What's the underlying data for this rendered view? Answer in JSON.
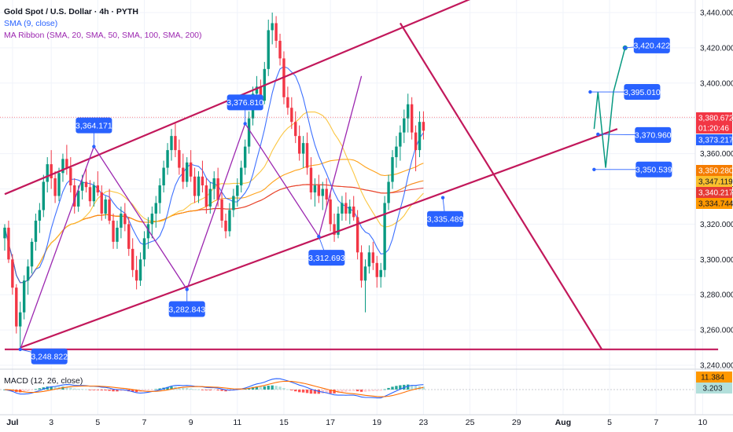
{
  "legend": {
    "title": "Gold Spot / U.S. Dollar · 4h · PYTH",
    "sma": "SMA (9, close)",
    "ribbon": "MA Ribbon (SMA, 20, SMA, 50, SMA, 100, SMA, 200)",
    "macd": "MACD (12, 26, close)"
  },
  "chart_data": {
    "type": "candlestick",
    "symbol": "Gold Spot / U.S. Dollar",
    "interval": "4h",
    "ylim": [
      3240,
      3440
    ],
    "y_ticks": [
      "3,440.000",
      "3,420.000",
      "3,400.000",
      "3,380.000",
      "3,360.000",
      "3,340.000",
      "3,320.000",
      "3,300.000",
      "3,280.000",
      "3,260.000",
      "3,240.000"
    ],
    "y_tick_values": [
      3440,
      3420,
      3400,
      3380,
      3360,
      3340,
      3320,
      3300,
      3280,
      3260,
      3240
    ],
    "x_ticks": [
      "Jul",
      "3",
      "5",
      "7",
      "9",
      "11",
      "15",
      "17",
      "19",
      "23",
      "25",
      "29",
      "Aug",
      "5",
      "7",
      "10"
    ],
    "x_tick_pos": [
      2,
      12,
      24,
      36,
      48,
      60,
      72,
      84,
      96,
      108,
      120,
      132,
      144,
      156,
      168,
      180
    ],
    "candles": [
      {
        "o": 3312,
        "h": 3320,
        "l": 3305,
        "c": 3318
      },
      {
        "o": 3318,
        "h": 3322,
        "l": 3298,
        "c": 3300
      },
      {
        "o": 3300,
        "h": 3303,
        "l": 3280,
        "c": 3284
      },
      {
        "o": 3284,
        "h": 3286,
        "l": 3258,
        "c": 3262
      },
      {
        "o": 3262,
        "h": 3276,
        "l": 3250,
        "c": 3270
      },
      {
        "o": 3270,
        "h": 3291,
        "l": 3266,
        "c": 3288
      },
      {
        "o": 3288,
        "h": 3300,
        "l": 3280,
        "c": 3296
      },
      {
        "o": 3296,
        "h": 3312,
        "l": 3292,
        "c": 3310
      },
      {
        "o": 3310,
        "h": 3326,
        "l": 3305,
        "c": 3322
      },
      {
        "o": 3322,
        "h": 3332,
        "l": 3315,
        "c": 3328
      },
      {
        "o": 3328,
        "h": 3348,
        "l": 3324,
        "c": 3344
      },
      {
        "o": 3344,
        "h": 3358,
        "l": 3338,
        "c": 3354
      },
      {
        "o": 3354,
        "h": 3362,
        "l": 3340,
        "c": 3346
      },
      {
        "o": 3346,
        "h": 3350,
        "l": 3332,
        "c": 3336
      },
      {
        "o": 3336,
        "h": 3352,
        "l": 3333,
        "c": 3349
      },
      {
        "o": 3349,
        "h": 3360,
        "l": 3344,
        "c": 3357
      },
      {
        "o": 3357,
        "h": 3365,
        "l": 3348,
        "c": 3352
      },
      {
        "o": 3352,
        "h": 3358,
        "l": 3338,
        "c": 3342
      },
      {
        "o": 3342,
        "h": 3346,
        "l": 3326,
        "c": 3330
      },
      {
        "o": 3330,
        "h": 3342,
        "l": 3327,
        "c": 3339
      },
      {
        "o": 3339,
        "h": 3348,
        "l": 3334,
        "c": 3344
      },
      {
        "o": 3344,
        "h": 3352,
        "l": 3338,
        "c": 3341
      },
      {
        "o": 3341,
        "h": 3345,
        "l": 3330,
        "c": 3333
      },
      {
        "o": 3333,
        "h": 3344,
        "l": 3330,
        "c": 3342
      },
      {
        "o": 3342,
        "h": 3350,
        "l": 3336,
        "c": 3338
      },
      {
        "o": 3338,
        "h": 3342,
        "l": 3322,
        "c": 3326
      },
      {
        "o": 3326,
        "h": 3336,
        "l": 3323,
        "c": 3334
      },
      {
        "o": 3334,
        "h": 3340,
        "l": 3320,
        "c": 3322
      },
      {
        "o": 3322,
        "h": 3326,
        "l": 3306,
        "c": 3310
      },
      {
        "o": 3310,
        "h": 3322,
        "l": 3306,
        "c": 3318
      },
      {
        "o": 3318,
        "h": 3330,
        "l": 3312,
        "c": 3326
      },
      {
        "o": 3326,
        "h": 3332,
        "l": 3316,
        "c": 3320
      },
      {
        "o": 3320,
        "h": 3324,
        "l": 3302,
        "c": 3306
      },
      {
        "o": 3306,
        "h": 3312,
        "l": 3290,
        "c": 3294
      },
      {
        "o": 3294,
        "h": 3302,
        "l": 3283,
        "c": 3288
      },
      {
        "o": 3288,
        "h": 3304,
        "l": 3285,
        "c": 3300
      },
      {
        "o": 3300,
        "h": 3316,
        "l": 3296,
        "c": 3312
      },
      {
        "o": 3312,
        "h": 3324,
        "l": 3306,
        "c": 3320
      },
      {
        "o": 3320,
        "h": 3330,
        "l": 3312,
        "c": 3326
      },
      {
        "o": 3326,
        "h": 3336,
        "l": 3318,
        "c": 3332
      },
      {
        "o": 3332,
        "h": 3346,
        "l": 3326,
        "c": 3342
      },
      {
        "o": 3342,
        "h": 3356,
        "l": 3338,
        "c": 3352
      },
      {
        "o": 3352,
        "h": 3366,
        "l": 3348,
        "c": 3362
      },
      {
        "o": 3362,
        "h": 3374,
        "l": 3356,
        "c": 3370
      },
      {
        "o": 3370,
        "h": 3377,
        "l": 3358,
        "c": 3362
      },
      {
        "o": 3362,
        "h": 3368,
        "l": 3348,
        "c": 3352
      },
      {
        "o": 3352,
        "h": 3360,
        "l": 3340,
        "c": 3344
      },
      {
        "o": 3344,
        "h": 3358,
        "l": 3341,
        "c": 3355
      },
      {
        "o": 3355,
        "h": 3362,
        "l": 3344,
        "c": 3347
      },
      {
        "o": 3347,
        "h": 3352,
        "l": 3332,
        "c": 3336
      },
      {
        "o": 3336,
        "h": 3350,
        "l": 3332,
        "c": 3347
      },
      {
        "o": 3347,
        "h": 3356,
        "l": 3338,
        "c": 3342
      },
      {
        "o": 3342,
        "h": 3346,
        "l": 3326,
        "c": 3330
      },
      {
        "o": 3330,
        "h": 3344,
        "l": 3326,
        "c": 3340
      },
      {
        "o": 3340,
        "h": 3350,
        "l": 3334,
        "c": 3346
      },
      {
        "o": 3346,
        "h": 3352,
        "l": 3330,
        "c": 3334
      },
      {
        "o": 3334,
        "h": 3338,
        "l": 3318,
        "c": 3322
      },
      {
        "o": 3322,
        "h": 3326,
        "l": 3312,
        "c": 3316
      },
      {
        "o": 3316,
        "h": 3332,
        "l": 3313,
        "c": 3328
      },
      {
        "o": 3328,
        "h": 3340,
        "l": 3324,
        "c": 3336
      },
      {
        "o": 3336,
        "h": 3346,
        "l": 3330,
        "c": 3342
      },
      {
        "o": 3342,
        "h": 3356,
        "l": 3338,
        "c": 3352
      },
      {
        "o": 3352,
        "h": 3368,
        "l": 3348,
        "c": 3364
      },
      {
        "o": 3364,
        "h": 3384,
        "l": 3360,
        "c": 3380
      },
      {
        "o": 3380,
        "h": 3398,
        "l": 3376,
        "c": 3394
      },
      {
        "o": 3394,
        "h": 3404,
        "l": 3386,
        "c": 3398
      },
      {
        "o": 3398,
        "h": 3402,
        "l": 3386,
        "c": 3390
      },
      {
        "o": 3390,
        "h": 3412,
        "l": 3388,
        "c": 3408
      },
      {
        "o": 3408,
        "h": 3436,
        "l": 3404,
        "c": 3430
      },
      {
        "o": 3430,
        "h": 3440,
        "l": 3422,
        "c": 3434
      },
      {
        "o": 3434,
        "h": 3438,
        "l": 3420,
        "c": 3424
      },
      {
        "o": 3424,
        "h": 3428,
        "l": 3410,
        "c": 3414
      },
      {
        "o": 3414,
        "h": 3418,
        "l": 3388,
        "c": 3392
      },
      {
        "o": 3392,
        "h": 3398,
        "l": 3382,
        "c": 3386
      },
      {
        "o": 3386,
        "h": 3392,
        "l": 3374,
        "c": 3378
      },
      {
        "o": 3378,
        "h": 3384,
        "l": 3366,
        "c": 3370
      },
      {
        "o": 3370,
        "h": 3376,
        "l": 3356,
        "c": 3360
      },
      {
        "o": 3360,
        "h": 3370,
        "l": 3352,
        "c": 3366
      },
      {
        "o": 3366,
        "h": 3372,
        "l": 3348,
        "c": 3352
      },
      {
        "o": 3352,
        "h": 3358,
        "l": 3334,
        "c": 3338
      },
      {
        "o": 3338,
        "h": 3346,
        "l": 3330,
        "c": 3342
      },
      {
        "o": 3342,
        "h": 3348,
        "l": 3332,
        "c": 3336
      },
      {
        "o": 3336,
        "h": 3344,
        "l": 3328,
        "c": 3340
      },
      {
        "o": 3340,
        "h": 3346,
        "l": 3330,
        "c": 3334
      },
      {
        "o": 3334,
        "h": 3338,
        "l": 3316,
        "c": 3320
      },
      {
        "o": 3320,
        "h": 3326,
        "l": 3310,
        "c": 3314
      },
      {
        "o": 3314,
        "h": 3330,
        "l": 3312,
        "c": 3326
      },
      {
        "o": 3326,
        "h": 3336,
        "l": 3322,
        "c": 3332
      },
      {
        "o": 3332,
        "h": 3338,
        "l": 3322,
        "c": 3326
      },
      {
        "o": 3326,
        "h": 3334,
        "l": 3320,
        "c": 3330
      },
      {
        "o": 3330,
        "h": 3336,
        "l": 3322,
        "c": 3324
      },
      {
        "o": 3324,
        "h": 3328,
        "l": 3300,
        "c": 3304
      },
      {
        "o": 3304,
        "h": 3308,
        "l": 3284,
        "c": 3288
      },
      {
        "o": 3288,
        "h": 3300,
        "l": 3270,
        "c": 3296
      },
      {
        "o": 3296,
        "h": 3308,
        "l": 3292,
        "c": 3304
      },
      {
        "o": 3304,
        "h": 3310,
        "l": 3294,
        "c": 3298
      },
      {
        "o": 3298,
        "h": 3302,
        "l": 3284,
        "c": 3290
      },
      {
        "o": 3290,
        "h": 3298,
        "l": 3284,
        "c": 3294
      },
      {
        "o": 3294,
        "h": 3336,
        "l": 3290,
        "c": 3332
      },
      {
        "o": 3332,
        "h": 3348,
        "l": 3328,
        "c": 3344
      },
      {
        "o": 3344,
        "h": 3362,
        "l": 3340,
        "c": 3358
      },
      {
        "o": 3358,
        "h": 3370,
        "l": 3352,
        "c": 3364
      },
      {
        "o": 3364,
        "h": 3376,
        "l": 3356,
        "c": 3372
      },
      {
        "o": 3372,
        "h": 3385,
        "l": 3366,
        "c": 3380
      },
      {
        "o": 3380,
        "h": 3394,
        "l": 3372,
        "c": 3388
      },
      {
        "o": 3388,
        "h": 3392,
        "l": 3368,
        "c": 3372
      },
      {
        "o": 3372,
        "h": 3376,
        "l": 3350,
        "c": 3362
      },
      {
        "o": 3362,
        "h": 3384,
        "l": 3358,
        "c": 3378
      },
      {
        "o": 3378,
        "h": 3384,
        "l": 3368,
        "c": 3373
      }
    ],
    "patterns": [
      {
        "name": "ascending-channel-upper",
        "color": "#c2185b",
        "points": [
          [
            0,
            3337
          ],
          [
            140,
            3466
          ]
        ]
      },
      {
        "name": "ascending-channel-lower",
        "color": "#c2185b",
        "points": [
          [
            4,
            3250
          ],
          [
            158,
            3374
          ]
        ]
      },
      {
        "name": "descending-trendline",
        "color": "#c2185b",
        "points": [
          [
            102,
            3434
          ],
          [
            154,
            3249
          ]
        ]
      },
      {
        "name": "horizontal-support",
        "color": "#c2185b",
        "points": [
          [
            0,
            3249
          ],
          [
            184,
            3249
          ]
        ]
      },
      {
        "name": "zigzag",
        "color": "#9c27b0",
        "points": [
          [
            4,
            3249
          ],
          [
            23,
            3364
          ],
          [
            47,
            3283
          ],
          [
            62,
            3377
          ],
          [
            81,
            3313
          ],
          [
            92,
            3404
          ]
        ]
      }
    ],
    "projection": {
      "color": "#089981",
      "points": [
        [
          152,
          3374
        ],
        [
          153,
          3395
        ],
        [
          155,
          3352
        ],
        [
          157,
          3395
        ],
        [
          160,
          3420
        ]
      ]
    },
    "annotations": [
      {
        "label": "3,364.171",
        "x": 23,
        "y": 3364
      },
      {
        "label": "3,376.810",
        "x": 62,
        "y": 3377
      },
      {
        "label": "3,282.843",
        "x": 47,
        "y": 3283
      },
      {
        "label": "3,312.693",
        "x": 81,
        "y": 3313
      },
      {
        "label": "3,248.822",
        "x": 4,
        "y": 3249
      },
      {
        "label": "3,335.489",
        "x": 113,
        "y": 3335
      },
      {
        "label": "3,420.422",
        "x": 160,
        "y": 3420
      },
      {
        "label": "3,395.010",
        "x": 151,
        "y": 3395
      },
      {
        "label": "3,370.960",
        "x": 153,
        "y": 3371
      },
      {
        "label": "3,350.539",
        "x": 152,
        "y": 3351
      }
    ],
    "price_tags": [
      {
        "label": "3,380.672",
        "y": 3380.672,
        "bg": "#f23645",
        "fg": "#ffffff"
      },
      {
        "label": "01:20:46",
        "y": 3370.8,
        "bg": "#f23645",
        "fg": "#ffffff"
      },
      {
        "label": "3,373.217",
        "y": 3373.217,
        "bg": "#2962ff",
        "fg": "#ffffff"
      },
      {
        "label": "3,350.280",
        "y": 3350.28,
        "bg": "#f57c00",
        "fg": "#ffffff"
      },
      {
        "label": "3,347.119",
        "y": 3347.119,
        "bg": "#fbc02d",
        "fg": "#131722"
      },
      {
        "label": "3,340.217",
        "y": 3340.217,
        "bg": "#e53935",
        "fg": "#ffffff"
      },
      {
        "label": "3,334.744",
        "y": 3334.744,
        "bg": "#ff9800",
        "fg": "#131722"
      }
    ],
    "macd_tags": [
      {
        "label": "11.384",
        "bg": "#ff9800",
        "fg": "#131722"
      },
      {
        "label": "3.203",
        "bg": "#b2dfdb",
        "fg": "#131722"
      }
    ]
  },
  "colors": {
    "up": "#089981",
    "down": "#f23645",
    "sma9": "#2962ff",
    "ma20": "#fbc02d",
    "ma50": "#ff9800",
    "ma100": "#f57c00",
    "ma200": "#e53935",
    "macd": "#2962ff",
    "signal": "#ff6d00"
  }
}
